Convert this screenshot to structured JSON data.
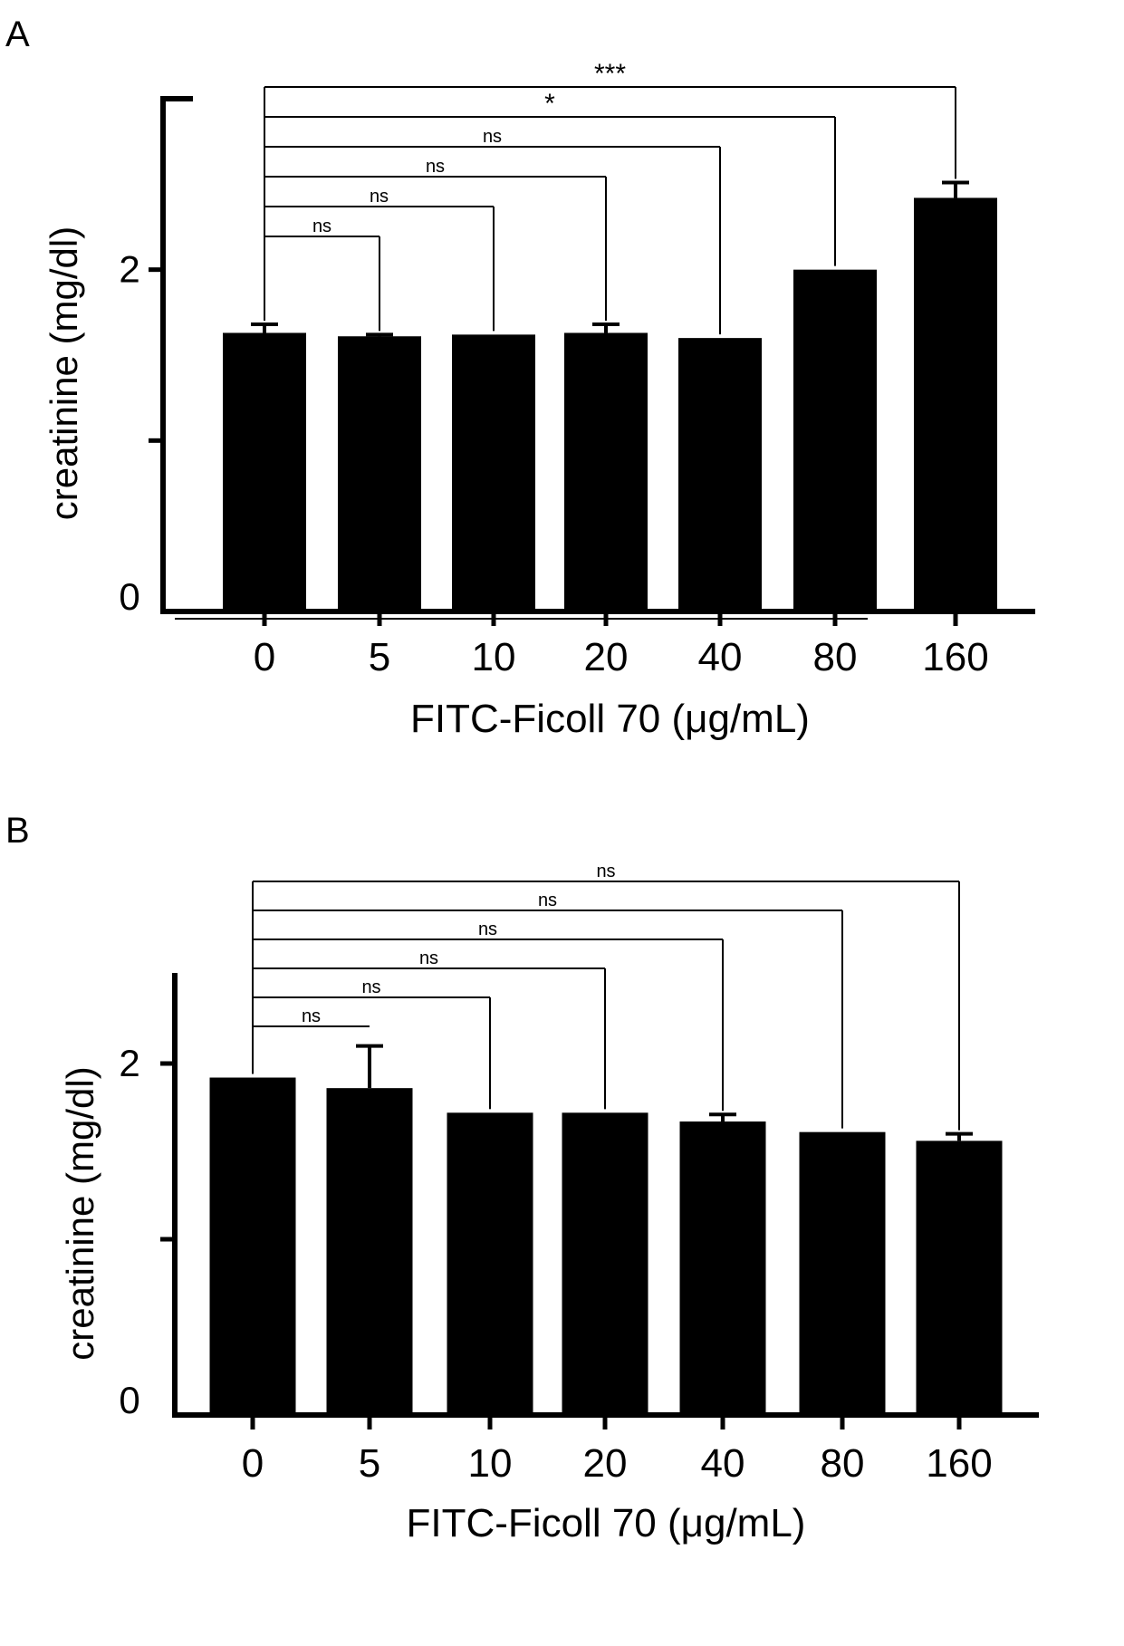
{
  "panels": [
    {
      "letter": "A"
    },
    {
      "letter": "B"
    }
  ],
  "chart_data": [
    {
      "type": "bar",
      "panel": "A",
      "title": "",
      "xlabel": "FITC-Ficoll 70 (μg/mL)",
      "ylabel": "creatinine (mg/dl)",
      "categories": [
        "0",
        "5",
        "10",
        "20",
        "40",
        "80",
        "160"
      ],
      "values": [
        1.63,
        1.61,
        1.62,
        1.63,
        1.6,
        2.0,
        2.42
      ],
      "errors": [
        0.05,
        0.01,
        0.0,
        0.05,
        0.0,
        0.0,
        0.09
      ],
      "ylim": [
        0,
        3.0
      ],
      "yticks": [
        0,
        1,
        2
      ],
      "ytick_labels": [
        "0",
        "",
        "2"
      ],
      "grid": false,
      "bar_color": "#000000",
      "comparisons": [
        {
          "from": 0,
          "to": 1,
          "label": "ns"
        },
        {
          "from": 0,
          "to": 2,
          "label": "ns"
        },
        {
          "from": 0,
          "to": 3,
          "label": "ns"
        },
        {
          "from": 0,
          "to": 4,
          "label": "ns"
        },
        {
          "from": 0,
          "to": 5,
          "label": "*"
        },
        {
          "from": 0,
          "to": 6,
          "label": "***"
        }
      ]
    },
    {
      "type": "bar",
      "panel": "B",
      "title": "",
      "xlabel": "FITC-Ficoll 70 (μg/mL)",
      "ylabel": "creatinine (mg/dl)",
      "categories": [
        "0",
        "5",
        "10",
        "20",
        "40",
        "80",
        "160"
      ],
      "values": [
        1.92,
        1.86,
        1.72,
        1.72,
        1.67,
        1.61,
        1.56
      ],
      "errors": [
        0.0,
        0.24,
        0.0,
        0.0,
        0.04,
        0.0,
        0.04
      ],
      "ylim": [
        0,
        2.5
      ],
      "yticks": [
        0,
        1,
        2
      ],
      "ytick_labels": [
        "0",
        "",
        "2"
      ],
      "grid": false,
      "bar_color": "#000000",
      "comparisons": [
        {
          "from": 0,
          "to": 1,
          "label": "ns"
        },
        {
          "from": 0,
          "to": 2,
          "label": "ns"
        },
        {
          "from": 0,
          "to": 3,
          "label": "ns"
        },
        {
          "from": 0,
          "to": 4,
          "label": "ns"
        },
        {
          "from": 0,
          "to": 5,
          "label": "ns"
        },
        {
          "from": 0,
          "to": 6,
          "label": "ns"
        }
      ]
    }
  ]
}
